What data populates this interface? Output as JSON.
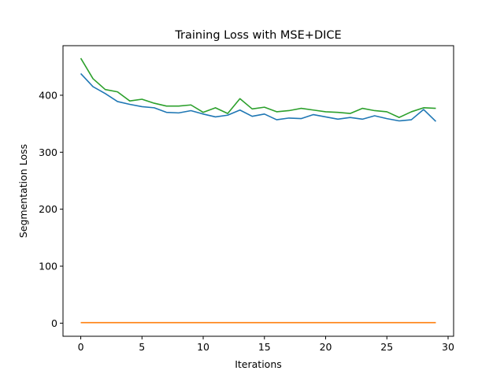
{
  "chart_data": {
    "type": "line",
    "title": "Training Loss with MSE+DICE",
    "xlabel": "Iterations",
    "ylabel": "Segmentation Loss",
    "xlim": [
      -1.45,
      30.45
    ],
    "ylim": [
      -23,
      487
    ],
    "xticks": [
      0,
      5,
      10,
      15,
      20,
      25,
      30
    ],
    "yticks": [
      0,
      100,
      200,
      300,
      400
    ],
    "grid": false,
    "x": [
      0,
      1,
      2,
      3,
      4,
      5,
      6,
      7,
      8,
      9,
      10,
      11,
      12,
      13,
      14,
      15,
      16,
      17,
      18,
      19,
      20,
      21,
      22,
      23,
      24,
      25,
      26,
      27,
      28,
      29
    ],
    "series": [
      {
        "color": "#1f77b4",
        "values": [
          438,
          415,
          403,
          389,
          384,
          380,
          378,
          370,
          369,
          373,
          367,
          362,
          365,
          374,
          363,
          367,
          357,
          360,
          359,
          366,
          362,
          358,
          361,
          358,
          364,
          359,
          355,
          357,
          375,
          354
        ]
      },
      {
        "color": "#ff7f0e",
        "values": [
          1,
          1,
          1,
          1,
          1,
          1,
          1,
          1,
          1,
          1,
          1,
          1,
          1,
          1,
          1,
          1,
          1,
          1,
          1,
          1,
          1,
          1,
          1,
          1,
          1,
          1,
          1,
          1,
          1,
          1
        ]
      },
      {
        "color": "#2ca02c",
        "values": [
          465,
          429,
          410,
          406,
          390,
          393,
          386,
          381,
          381,
          383,
          370,
          378,
          368,
          394,
          376,
          379,
          371,
          373,
          377,
          374,
          371,
          370,
          368,
          377,
          373,
          371,
          361,
          371,
          378,
          377
        ]
      }
    ]
  }
}
